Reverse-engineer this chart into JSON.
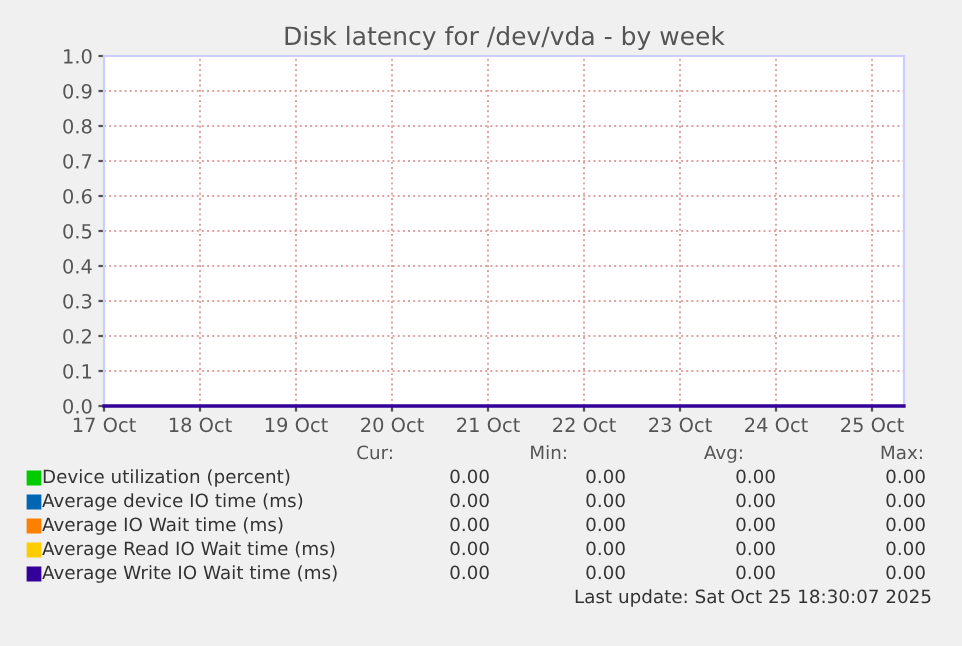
{
  "chart_data": {
    "type": "line",
    "title": "Disk latency for /dev/vda - by week",
    "x": [
      "2025-10-17T00:00",
      "2025-10-25T08:00"
    ],
    "series": [
      {
        "name": "Device utilization (percent)",
        "color": "#00cc00",
        "values": [
          null,
          null
        ]
      },
      {
        "name": "Average device IO time (ms)",
        "color": "#0066b3",
        "values": [
          null,
          null
        ]
      },
      {
        "name": "Average IO Wait time (ms)",
        "color": "#ff8000",
        "values": [
          null,
          null
        ]
      },
      {
        "name": "Average Read IO Wait time (ms)",
        "color": "#ffcc00",
        "values": [
          null,
          null
        ]
      },
      {
        "name": "Average Write IO Wait time (ms)",
        "color": "#330099",
        "values": [
          0,
          0
        ]
      }
    ],
    "xlim": [
      "2025-10-17T00:00",
      "2025-10-25T08:00"
    ],
    "xticks": [
      {
        "value": "2025-10-17",
        "label": "17 Oct"
      },
      {
        "value": "2025-10-18",
        "label": "18 Oct"
      },
      {
        "value": "2025-10-19",
        "label": "19 Oct"
      },
      {
        "value": "2025-10-20",
        "label": "20 Oct"
      },
      {
        "value": "2025-10-21",
        "label": "21 Oct"
      },
      {
        "value": "2025-10-22",
        "label": "22 Oct"
      },
      {
        "value": "2025-10-23",
        "label": "23 Oct"
      },
      {
        "value": "2025-10-24",
        "label": "24 Oct"
      },
      {
        "value": "2025-10-25",
        "label": "25 Oct"
      }
    ],
    "ylim": [
      0,
      1.0
    ],
    "yticks": [
      {
        "value": 0,
        "label": "0.0"
      },
      {
        "value": 0.1,
        "label": "0.1"
      },
      {
        "value": 0.2,
        "label": "0.2"
      },
      {
        "value": 0.3,
        "label": "0.3"
      },
      {
        "value": 0.4,
        "label": "0.4"
      },
      {
        "value": 0.5,
        "label": "0.5"
      },
      {
        "value": 0.6,
        "label": "0.6"
      },
      {
        "value": 0.7,
        "label": "0.7"
      },
      {
        "value": 0.8,
        "label": "0.8"
      },
      {
        "value": 0.9,
        "label": "0.9"
      },
      {
        "value": 1.0,
        "label": "1.0"
      }
    ],
    "grid": true,
    "legend": "bottom",
    "marker": "none",
    "line_style": "solid",
    "annotations": [
      "Cur:",
      "Min:",
      "Avg:",
      "Max:",
      "0.00",
      "0.00",
      "0.00",
      "0.00",
      "0.00",
      "0.00",
      "0.00",
      "0.00",
      "0.00",
      "0.00",
      "0.00",
      "0.00",
      "0.00",
      "0.00",
      "0.00",
      "0.00",
      "0.00",
      "0.00",
      "0.00",
      "0.00",
      "Last update: Sat Oct 25 18:30:07 2025"
    ]
  }
}
